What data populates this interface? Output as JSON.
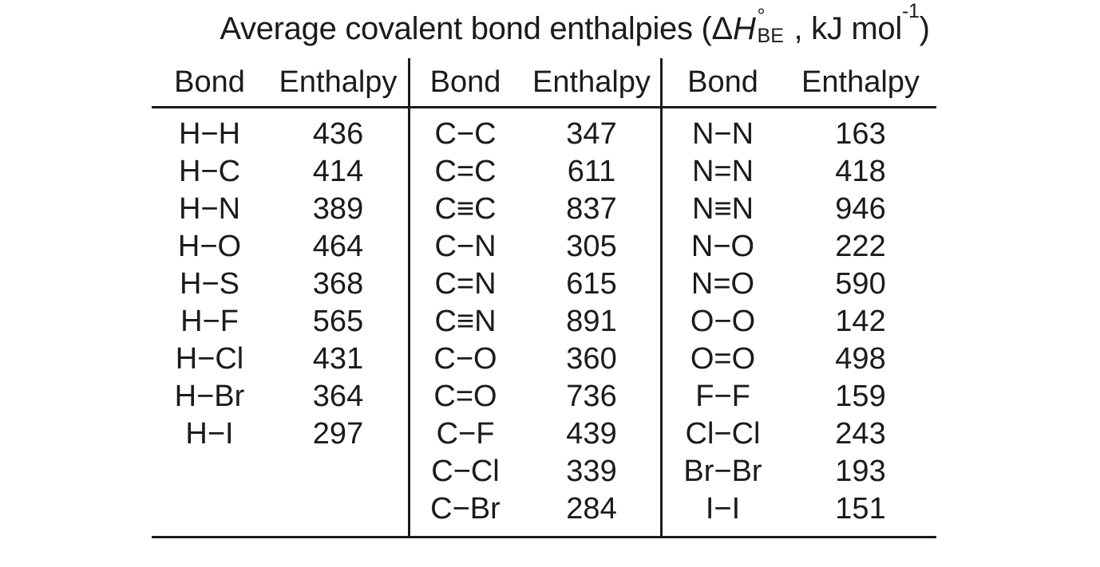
{
  "colors": {
    "background": "#ffffff",
    "text": "#1b1b1b",
    "rule": "#1b1b1b"
  },
  "title": {
    "prefix": "Average covalent bond enthalpies (",
    "delta": "Δ",
    "h_symbol": "H",
    "h_superscript": "°",
    "h_subscript": "BE",
    "units_prefix": ", kJ mol",
    "units_exponent": "-1",
    "suffix": ")"
  },
  "table": {
    "header": [
      "Bond",
      "Enthalpy"
    ],
    "groups": [
      {
        "rows": [
          [
            "H−H",
            436
          ],
          [
            "H−C",
            414
          ],
          [
            "H−N",
            389
          ],
          [
            "H−O",
            464
          ],
          [
            "H−S",
            368
          ],
          [
            "H−F",
            565
          ],
          [
            "H−Cl",
            431
          ],
          [
            "H−Br",
            364
          ],
          [
            "H−I",
            297
          ]
        ]
      },
      {
        "rows": [
          [
            "C−C",
            347
          ],
          [
            "C=C",
            611
          ],
          [
            "C≡C",
            837
          ],
          [
            "C−N",
            305
          ],
          [
            "C=N",
            615
          ],
          [
            "C≡N",
            891
          ],
          [
            "C−O",
            360
          ],
          [
            "C=O",
            736
          ],
          [
            "C−F",
            439
          ],
          [
            "C−Cl",
            339
          ],
          [
            "C−Br",
            284
          ]
        ]
      },
      {
        "rows": [
          [
            "N−N",
            163
          ],
          [
            "N=N",
            418
          ],
          [
            "N≡N",
            946
          ],
          [
            "N−O",
            222
          ],
          [
            "N=O",
            590
          ],
          [
            "O−O",
            142
          ],
          [
            "O=O",
            498
          ],
          [
            "F−F",
            159
          ],
          [
            "Cl−Cl",
            243
          ],
          [
            "Br−Br",
            193
          ],
          [
            "I−I",
            151
          ]
        ]
      }
    ]
  }
}
